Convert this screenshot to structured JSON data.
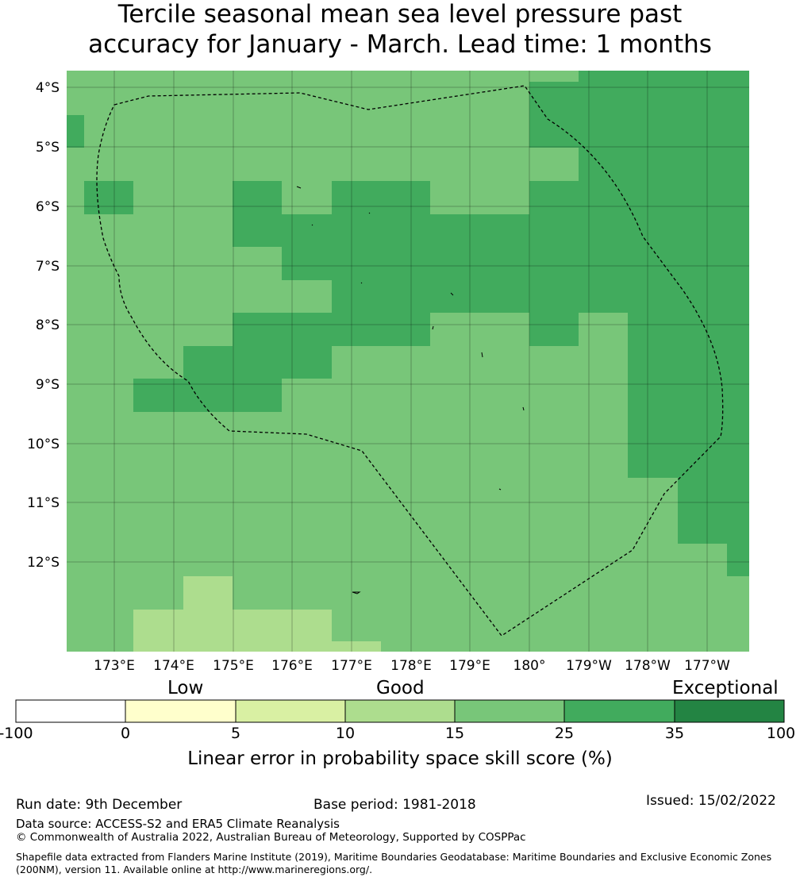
{
  "title": {
    "line1": "Tercile seasonal mean sea level pressure past",
    "line2": "accuracy for January - March. Lead time: 1 months"
  },
  "map": {
    "lon_labels": [
      "173°E",
      "174°E",
      "175°E",
      "176°E",
      "177°E",
      "178°E",
      "179°E",
      "180°",
      "179°W",
      "178°W",
      "177°W"
    ],
    "lat_labels": [
      "4°S",
      "5°S",
      "6°S",
      "7°S",
      "8°S",
      "9°S",
      "10°S",
      "11°S",
      "12°S"
    ],
    "legend_classes": [
      "-100 to 0",
      "0 to 5",
      "5 to 10",
      "10 to 15",
      "15 to 25",
      "25 to 35",
      "35 to 100"
    ],
    "class_colors": [
      "#ffffff",
      "#ffffcc",
      "#d9f0a3",
      "#addd8e",
      "#78c679",
      "#41ab5d",
      "#238443"
    ],
    "grid_skill_classes": [
      [
        4,
        4,
        4,
        4,
        4,
        4,
        4,
        4,
        4,
        4,
        4,
        4,
        4,
        4,
        4,
        4,
        4,
        4,
        4,
        4,
        4,
        4,
        4,
        4,
        4,
        4,
        4,
        4,
        4,
        4,
        4,
        4,
        4,
        4,
        4,
        4,
        4,
        4,
        4,
        4,
        4,
        4,
        4,
        4,
        4,
        4,
        4,
        4,
        4,
        4,
        4,
        4,
        4,
        4,
        4,
        4,
        4,
        4,
        4,
        4,
        4,
        4,
        4,
        4,
        4,
        4,
        4,
        4,
        4,
        4,
        4,
        4,
        5,
        5,
        5,
        5,
        5,
        5,
        5,
        5,
        5,
        5,
        5,
        5,
        5,
        5,
        5,
        5,
        5,
        5,
        5,
        5,
        5,
        5,
        5,
        5
      ],
      [
        4,
        4,
        4,
        4,
        4,
        4,
        4,
        4,
        4,
        4,
        4,
        4,
        4,
        4,
        4,
        4,
        4,
        4,
        4,
        4,
        4,
        4,
        4,
        4,
        4,
        4,
        4,
        4,
        4,
        4,
        4,
        4,
        4,
        4,
        4,
        4,
        4,
        4,
        4,
        4,
        4,
        4,
        4,
        4,
        4,
        4,
        4,
        4,
        4,
        4,
        4,
        4,
        4,
        4,
        4,
        4,
        4,
        4,
        4,
        4,
        4,
        4,
        4,
        4,
        4,
        5,
        5,
        5,
        5,
        5,
        5,
        5,
        5,
        5,
        5,
        5,
        5,
        5,
        5,
        5,
        5,
        5,
        5,
        5,
        5,
        5,
        5,
        5,
        5,
        5,
        5,
        5,
        5,
        5,
        5,
        5
      ],
      [
        4,
        4,
        4,
        4,
        4,
        4,
        4,
        4,
        4,
        4,
        4,
        4,
        4,
        4,
        4,
        4,
        4,
        4,
        4,
        4,
        4,
        4,
        4,
        4,
        4,
        4,
        4,
        4,
        4,
        4,
        4,
        4,
        4,
        4,
        4,
        4,
        4,
        4,
        4,
        4,
        4,
        4,
        4,
        4,
        4,
        4,
        4,
        4,
        4,
        4,
        4,
        4,
        4,
        4,
        4,
        4,
        4,
        4,
        4,
        4,
        4,
        4,
        4,
        4,
        4,
        5,
        5,
        5,
        5,
        5,
        5,
        5,
        5,
        5,
        5,
        5,
        5,
        5,
        5,
        5,
        5,
        5,
        5,
        5,
        5,
        5,
        5,
        5,
        5,
        5,
        5,
        5,
        5,
        5,
        5,
        5
      ],
      [
        4,
        4,
        4,
        4,
        4,
        4,
        4,
        4,
        4,
        4,
        4,
        4,
        4,
        4,
        4,
        4,
        4,
        4,
        4,
        4,
        4,
        4,
        4,
        4,
        4,
        4,
        4,
        4,
        4,
        4,
        4,
        4,
        4,
        4,
        4,
        4,
        4,
        4,
        4,
        4,
        4,
        4,
        4,
        4,
        4,
        4,
        4,
        4,
        4,
        4,
        4,
        4,
        4,
        4,
        4,
        4,
        4,
        4,
        4,
        4,
        4,
        4,
        4,
        4,
        4,
        5,
        5,
        5,
        5,
        5,
        5,
        5,
        5,
        5,
        5,
        5,
        5,
        5,
        5,
        5,
        5,
        5,
        5,
        5,
        5,
        5,
        5,
        5,
        5,
        5,
        5,
        5,
        5,
        5,
        5,
        5
      ],
      [
        4,
        4,
        4,
        4,
        4,
        4,
        4,
        4,
        4,
        4,
        4,
        4,
        4,
        4,
        4,
        4,
        4,
        4,
        4,
        4,
        4,
        4,
        4,
        4,
        4,
        4,
        4,
        4,
        4,
        4,
        4,
        4,
        4,
        4,
        4,
        4,
        4,
        4,
        4,
        4,
        4,
        4,
        4,
        4,
        4,
        4,
        4,
        4,
        4,
        4,
        4,
        4,
        4,
        4,
        4,
        4,
        4,
        4,
        4,
        4,
        4,
        4,
        4,
        4,
        4,
        5,
        5,
        5,
        5,
        5,
        5,
        5,
        5,
        5,
        5,
        5,
        5,
        5,
        5,
        5,
        5,
        5,
        5,
        5,
        5,
        5,
        5,
        5,
        5,
        5,
        5,
        5,
        5,
        5,
        5,
        5
      ],
      [
        4,
        4,
        4,
        4,
        4,
        4,
        4,
        4,
        4,
        4,
        4,
        4,
        4,
        4,
        4,
        4,
        4,
        4,
        4,
        4,
        4,
        4,
        4,
        4,
        4,
        4,
        4,
        4,
        4,
        4,
        4,
        4,
        4,
        4,
        4,
        4,
        4,
        4,
        4,
        4,
        4,
        4,
        4,
        4,
        4,
        4,
        4,
        4,
        4,
        4,
        4,
        4,
        4,
        4,
        4,
        4,
        4,
        4,
        4,
        4,
        4,
        4,
        4,
        4,
        4,
        5,
        5,
        5,
        5,
        5,
        5,
        5,
        5,
        5,
        5,
        5,
        5,
        5,
        5,
        5,
        5,
        5,
        5,
        5,
        5,
        5,
        5,
        5,
        5,
        5,
        5,
        5,
        5,
        5,
        5,
        5
      ]
    ],
    "skill_regions": [
      {
        "lon": [
          172.2,
          181.6
        ],
        "lat": [
          -13.65,
          -3.75
        ],
        "class": 4
      },
      {
        "lon": [
          181.6,
          182.0
        ],
        "lat": [
          -3.95,
          -3.75
        ],
        "class": 4
      },
      {
        "lon": [
          180.0,
          181.6
        ],
        "lat": [
          -5.0,
          -3.95
        ],
        "class": 5
      },
      {
        "lon": [
          180.0,
          180.8
        ],
        "lat": [
          -5.22,
          -5.0
        ],
        "class": 4
      },
      {
        "lon": [
          180.8,
          181.6
        ],
        "lat": [
          -5.22,
          -5.0
        ],
        "class": 5
      },
      {
        "lon": [
          180.0,
          183.5
        ],
        "lat": [
          -8.35,
          -5.22
        ],
        "class": 5
      },
      {
        "lon": [
          182.0,
          183.5
        ],
        "lat": [
          -3.95,
          -3.75
        ],
        "class": 5
      },
      {
        "lon": [
          181.6,
          183.5
        ],
        "lat": [
          -5.22,
          -3.95
        ],
        "class": 5
      },
      {
        "lon": [
          180.0,
          181.6
        ],
        "lat": [
          -7.82,
          -6.1
        ],
        "class": 5
      },
      {
        "lon": [
          180.0,
          180.8
        ],
        "lat": [
          -8.35,
          -7.82
        ],
        "class": 5
      },
      {
        "lon": [
          182.4,
          183.5
        ],
        "lat": [
          -10.55,
          -7.82
        ],
        "class": 5
      },
      {
        "lon": [
          183.2,
          183.5
        ],
        "lat": [
          -11.67,
          -10.55
        ],
        "class": 5
      },
      {
        "lon": [
          183.5,
          183.5
        ],
        "lat": [
          -12.22,
          -11.67
        ],
        "class": 5
      },
      {
        "lon": [
          172.2,
          172.5
        ],
        "lat": [
          -5.0,
          -4.45
        ],
        "class": 5
      },
      {
        "lon": [
          172.5,
          173.3
        ],
        "lat": [
          -6.15,
          -5.6
        ],
        "class": 5
      },
      {
        "lon": [
          175.0,
          175.8
        ],
        "lat": [
          -6.7,
          -5.6
        ],
        "class": 5
      },
      {
        "lon": [
          175.8,
          176.6
        ],
        "lat": [
          -7.25,
          -6.15
        ],
        "class": 5
      },
      {
        "lon": [
          176.6,
          178.3
        ],
        "lat": [
          -8.35,
          -5.6
        ],
        "class": 5
      },
      {
        "lon": [
          178.3,
          180.0
        ],
        "lat": [
          -7.82,
          -6.15
        ],
        "class": 5
      },
      {
        "lon": [
          175.0,
          176.6
        ],
        "lat": [
          -8.9,
          -7.82
        ],
        "class": 5
      },
      {
        "lon": [
          176.6,
          176.6
        ],
        "lat": [
          -8.9,
          -8.35
        ],
        "class": 5
      },
      {
        "lon": [
          174.2,
          175.0
        ],
        "lat": [
          -9.45,
          -8.35
        ],
        "class": 5
      },
      {
        "lon": [
          173.3,
          174.2
        ],
        "lat": [
          -9.45,
          -8.9
        ],
        "class": 5
      },
      {
        "lon": [
          175.0,
          175.8
        ],
        "lat": [
          -9.45,
          -8.9
        ],
        "class": 5
      },
      {
        "lon": [
          174.2,
          175.0
        ],
        "lat": [
          -13.65,
          -12.22
        ],
        "class": 3
      },
      {
        "lon": [
          173.3,
          174.2
        ],
        "lat": [
          -13.65,
          -12.77
        ],
        "class": 3
      },
      {
        "lon": [
          175.0,
          176.6
        ],
        "lat": [
          -13.65,
          -12.77
        ],
        "class": 3
      },
      {
        "lon": [
          176.6,
          177.4
        ],
        "lat": [
          -13.65,
          -13.32
        ],
        "class": 3
      }
    ]
  },
  "legend": {
    "cat_low": "Low",
    "cat_good": "Good",
    "cat_exceptional": "Exceptional",
    "ticks": [
      "-100",
      "0",
      "5",
      "10",
      "15",
      "25",
      "35",
      "100"
    ],
    "label": "Linear error in probability space skill score (%)"
  },
  "footer": {
    "run_date": "Run date: 9th December",
    "base_period": "Base period: 1981-2018",
    "issued": "Issued: 15/02/2022",
    "data_source": "Data source: ACCESS-S2 and ERA5 Climate Reanalysis",
    "copyright": "© Commonwealth of Australia 2022, Australian Bureau of Meteorology, Supported by COSPPac",
    "shapefile": "Shapefile data extracted from Flanders Marine Institute (2019), Maritime Boundaries Geodatabase: Maritime Boundaries and Exclusive Economic Zones (200NM), version 11. Available online at http://www.marineregions.org/."
  }
}
